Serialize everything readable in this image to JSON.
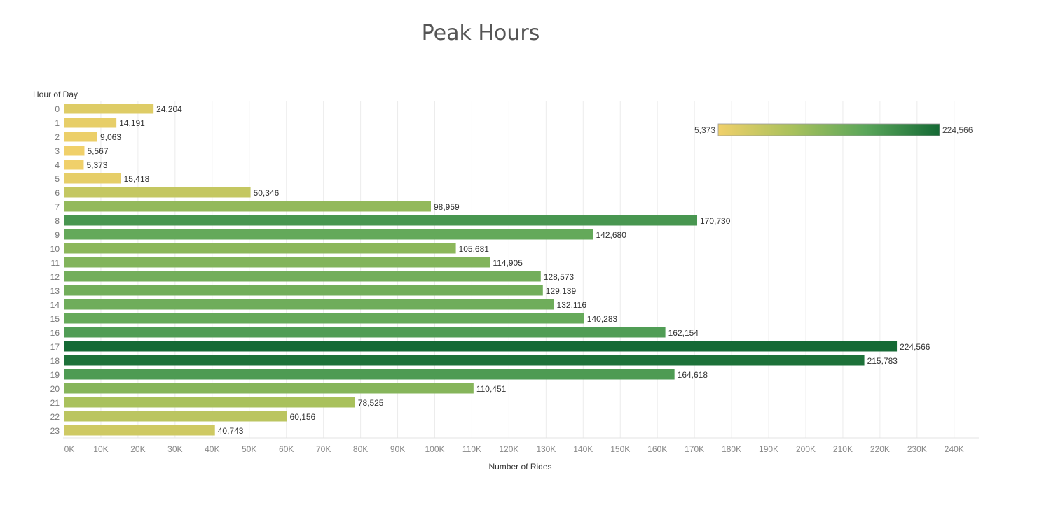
{
  "chart_data": {
    "type": "bar",
    "orientation": "horizontal",
    "title": "Peak Hours",
    "ylabel": "Hour of Day",
    "xlabel": "Number of Rides",
    "categories": [
      "0",
      "1",
      "2",
      "3",
      "4",
      "5",
      "6",
      "7",
      "8",
      "9",
      "10",
      "11",
      "12",
      "13",
      "14",
      "15",
      "16",
      "17",
      "18",
      "19",
      "20",
      "21",
      "22",
      "23"
    ],
    "values": [
      24204,
      14191,
      9063,
      5567,
      5373,
      15418,
      50346,
      98959,
      170730,
      142680,
      105681,
      114905,
      128573,
      129139,
      132116,
      140283,
      162154,
      224566,
      215783,
      164618,
      110451,
      78525,
      60156,
      40743
    ],
    "value_labels": [
      "24,204",
      "14,191",
      "9,063",
      "5,567",
      "5,373",
      "15,418",
      "50,346",
      "98,959",
      "170,730",
      "142,680",
      "105,681",
      "114,905",
      "128,573",
      "129,139",
      "132,116",
      "140,283",
      "162,154",
      "224,566",
      "215,783",
      "164,618",
      "110,451",
      "78,525",
      "60,156",
      "40,743"
    ],
    "xlim": [
      0,
      240000
    ],
    "x_ticks": [
      "0K",
      "10K",
      "20K",
      "30K",
      "40K",
      "50K",
      "60K",
      "70K",
      "80K",
      "90K",
      "100K",
      "110K",
      "120K",
      "130K",
      "140K",
      "150K",
      "160K",
      "170K",
      "180K",
      "190K",
      "200K",
      "210K",
      "220K",
      "230K",
      "240K"
    ],
    "grid": "vertical",
    "color_scale": {
      "min": 5373,
      "max": 224566,
      "min_label": "5,373",
      "max_label": "224,566",
      "stops": [
        "#f0d06a",
        "#a9c15c",
        "#5aa65a",
        "#156a35"
      ],
      "legend_position": "top-right"
    }
  }
}
